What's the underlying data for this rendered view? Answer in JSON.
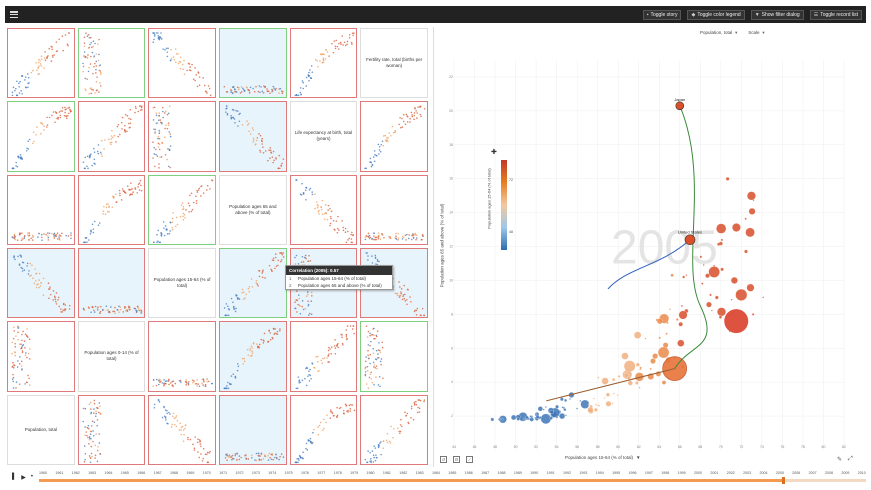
{
  "toolbar": {
    "toggle_story": "Toggle story",
    "toggle_color_legend": "Toggle color legend",
    "show_filter_dialog": "Show filter dialog",
    "toggle_record_list": "Toggle record list"
  },
  "splom": {
    "labels": [
      "Fertility rate, total (births per woman)",
      "Life expectancy at birth, total (years)",
      "Population ages 65 and above (% of total)",
      "Population ages 15-64 (% of total)",
      "Population ages 0-14 (% of total)",
      "Population, total"
    ],
    "tooltip": {
      "title": "Correlation (2005): 0.57",
      "rows": [
        {
          "key": "1",
          "label": "Population ages 15-64 (% of total)"
        },
        {
          "key": "2",
          "label": "Population ages 65 and above (% of total)"
        }
      ]
    }
  },
  "scatter": {
    "size_select": "Population, total",
    "scale_select": "Scale",
    "y_label": "Population ages 65 and above (% of total)",
    "x_label": "Population ages 15-64 (% of total)",
    "year_watermark": "2005",
    "legend_label": "Population ages 15-64 (% of total)",
    "legend_max": "72",
    "legend_min": "48",
    "annotations": [
      "Japan",
      "United States"
    ]
  },
  "chart_data": {
    "type": "scatter",
    "xlabel": "Population ages 15-64 (% of total)",
    "ylabel": "Population ages 65 and above (% of total)",
    "x_ticks": [
      "44",
      "46",
      "48",
      "50",
      "52",
      "54",
      "56",
      "58",
      "60",
      "62",
      "64",
      "66",
      "68",
      "70",
      "72",
      "74",
      "76",
      "78",
      "80",
      "82"
    ],
    "y_ticks": [
      "2",
      "4",
      "6",
      "8",
      "10",
      "12",
      "14",
      "16",
      "18",
      "20",
      "22"
    ],
    "xlim": [
      44,
      82
    ],
    "ylim": [
      0,
      23
    ],
    "highlighted": [
      {
        "name": "Japan",
        "x": 66,
        "y": 20.3
      },
      {
        "name": "United States",
        "x": 67,
        "y": 12.4
      }
    ]
  },
  "timeline": {
    "years": [
      "1960",
      "1961",
      "1962",
      "1963",
      "1964",
      "1965",
      "1966",
      "1967",
      "1968",
      "1969",
      "1970",
      "1971",
      "1972",
      "1973",
      "1974",
      "1975",
      "1976",
      "1977",
      "1978",
      "1979",
      "1980",
      "1981",
      "1982",
      "1983",
      "1984",
      "1985",
      "1986",
      "1987",
      "1988",
      "1989",
      "1990",
      "1991",
      "1992",
      "1993",
      "1994",
      "1995",
      "1996",
      "1997",
      "1998",
      "1999",
      "2000",
      "2001",
      "2002",
      "2003",
      "2004",
      "2005",
      "2006",
      "2007",
      "2008",
      "2009",
      "2010"
    ],
    "current_fraction": 0.9
  }
}
